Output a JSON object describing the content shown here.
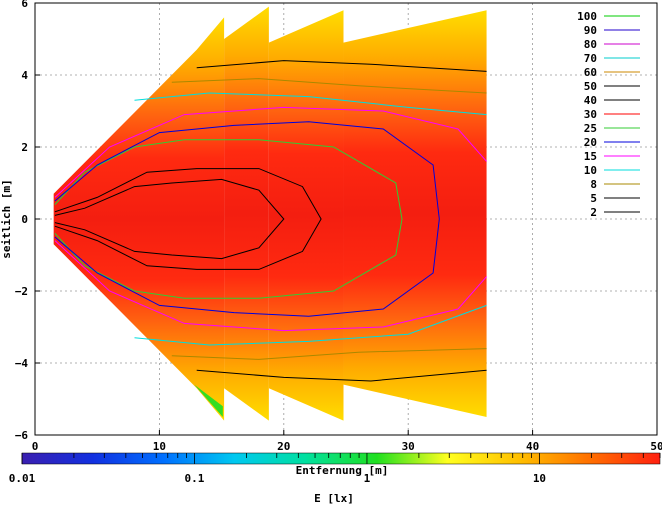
{
  "chart_data": {
    "type": "heatmap",
    "xlabel": "Entfernung [m]",
    "ylabel": "seitlich [m]",
    "xlim": [
      0,
      50
    ],
    "ylim": [
      -6,
      6
    ],
    "x_ticks": [
      "0",
      "10",
      "20",
      "30",
      "40",
      "50"
    ],
    "y_ticks": [
      "6",
      "4",
      "2",
      "0",
      "−2",
      "−4",
      "−6"
    ],
    "grid": true,
    "legend_position": "top-right",
    "contour_legend": [
      {
        "label": "100",
        "color": "#00cc00"
      },
      {
        "label": "90",
        "color": "#2200cc"
      },
      {
        "label": "80",
        "color": "#cc00cc"
      },
      {
        "label": "70",
        "color": "#00cccc"
      },
      {
        "label": "60",
        "color": "#cc8800"
      },
      {
        "label": "50",
        "color": "#000000"
      },
      {
        "label": "40",
        "color": "#000000"
      },
      {
        "label": "30",
        "color": "#ff0000"
      },
      {
        "label": "25",
        "color": "#33cc33"
      },
      {
        "label": "20",
        "color": "#0000dd"
      },
      {
        "label": "15",
        "color": "#ff00ff"
      },
      {
        "label": "10",
        "color": "#00dddd"
      },
      {
        "label": "8",
        "color": "#aa8800"
      },
      {
        "label": "5",
        "color": "#000000"
      },
      {
        "label": "2",
        "color": "#000000"
      }
    ],
    "illuminated_sections": [
      {
        "x_start": 1.5,
        "x_end": 15.2,
        "y_top": 5.9,
        "y_bottom": -5.9
      },
      {
        "x_start": 15.2,
        "x_end": 18.8,
        "y_top": 5.9,
        "y_bottom": -5.6
      },
      {
        "x_start": 18.8,
        "x_end": 24.8,
        "y_top": 5.8,
        "y_bottom": -5.6
      },
      {
        "x_start": 24.8,
        "x_end": 36.3,
        "y_top": 5.8,
        "y_bottom": -5.5
      }
    ],
    "contours": [
      {
        "label": "50",
        "color": "#000000",
        "x": [
          1.6,
          4,
          8,
          11,
          15,
          18,
          20,
          18,
          15,
          11,
          8,
          4,
          1.6
        ],
        "y": [
          0.1,
          0.3,
          0.9,
          1.0,
          1.1,
          0.8,
          0,
          -0.8,
          -1.1,
          -1.0,
          -0.9,
          -0.3,
          -0.1
        ]
      },
      {
        "label": "40",
        "color": "#000000",
        "x": [
          1.6,
          5,
          9,
          13,
          18,
          21.5,
          23,
          21.5,
          18,
          13,
          9,
          5,
          1.6
        ],
        "y": [
          0.2,
          0.6,
          1.3,
          1.4,
          1.4,
          0.9,
          0,
          -0.9,
          -1.4,
          -1.4,
          -1.3,
          -0.6,
          -0.2
        ]
      },
      {
        "label": "25",
        "color": "#33cc33",
        "x": [
          1.6,
          4,
          8,
          12,
          18,
          24,
          29,
          29.5,
          29,
          24,
          18,
          12,
          8,
          4,
          1.6
        ],
        "y": [
          0.4,
          1.3,
          2.0,
          2.2,
          2.2,
          2.0,
          1.0,
          0,
          -1.0,
          -2.0,
          -2.2,
          -2.2,
          -2.0,
          -1.3,
          -0.4
        ]
      },
      {
        "label": "20",
        "color": "#0000dd",
        "x": [
          1.6,
          5,
          10,
          16,
          22,
          28,
          32,
          32.5,
          32,
          28,
          22,
          16,
          10,
          5,
          1.6
        ],
        "y": [
          0.5,
          1.5,
          2.4,
          2.6,
          2.7,
          2.5,
          1.5,
          0,
          -1.5,
          -2.5,
          -2.7,
          -2.6,
          -2.4,
          -1.5,
          -0.5
        ]
      },
      {
        "label": "15",
        "color": "#ff00ff",
        "x": [
          1.6,
          6,
          12,
          20,
          28,
          34,
          36.3
        ],
        "y": [
          0.6,
          2.0,
          2.9,
          3.1,
          3.0,
          2.5,
          1.6
        ]
      },
      {
        "label": "15",
        "color": "#ff00ff",
        "x": [
          1.6,
          6,
          12,
          20,
          28,
          34,
          36.3
        ],
        "y": [
          -0.6,
          -2.0,
          -2.9,
          -3.1,
          -3.0,
          -2.5,
          -1.6
        ]
      },
      {
        "label": "10",
        "color": "#00dddd",
        "x": [
          8,
          14,
          22,
          30,
          36.3
        ],
        "y": [
          3.3,
          3.5,
          3.4,
          3.1,
          2.9
        ]
      },
      {
        "label": "10",
        "color": "#00dddd",
        "x": [
          8,
          14,
          22,
          30,
          36.3
        ],
        "y": [
          -3.3,
          -3.5,
          -3.4,
          -3.2,
          -2.4
        ]
      },
      {
        "label": "8",
        "color": "#aa8800",
        "x": [
          11,
          18,
          26,
          36.3
        ],
        "y": [
          3.8,
          3.9,
          3.7,
          3.5
        ]
      },
      {
        "label": "8",
        "color": "#aa8800",
        "x": [
          11,
          18,
          26,
          36.3
        ],
        "y": [
          -3.8,
          -3.9,
          -3.7,
          -3.6
        ]
      },
      {
        "label": "5",
        "color": "#000000",
        "x": [
          13,
          20,
          27,
          36.3
        ],
        "y": [
          4.2,
          4.4,
          4.3,
          4.1
        ]
      },
      {
        "label": "5",
        "color": "#000000",
        "x": [
          13,
          20,
          27,
          36.3
        ],
        "y": [
          -4.2,
          -4.4,
          -4.5,
          -4.2
        ]
      }
    ],
    "colorbar": {
      "label": "E [lx]",
      "scale": "log",
      "range": [
        0.01,
        50
      ],
      "tick_labels": [
        "0.01",
        "0.1",
        "1",
        "10"
      ],
      "colormap": [
        "#3a1fb0",
        "#1230e0",
        "#0070ff",
        "#00c8f0",
        "#00e0a0",
        "#20e020",
        "#ffff20",
        "#ffc000",
        "#ff7000",
        "#ff2010"
      ]
    }
  }
}
